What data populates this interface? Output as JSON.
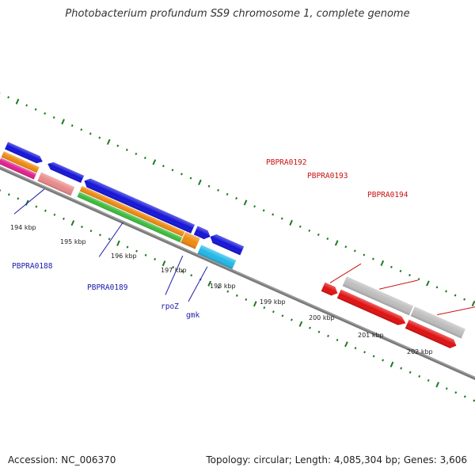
{
  "title": "Photobacterium profundum SS9 chromosome 1, complete genome",
  "footer": {
    "accession": "Accession: NC_006370",
    "summary": "Topology: circular; Length: 4,085,304 bp; Genes: 3,606"
  },
  "scale_labels": [
    "194 kbp",
    "195 kbp",
    "196 kbp",
    "197 kbp",
    "198 kbp",
    "199 kbp",
    "200 kbp",
    "201 kbp",
    "202 kbp"
  ],
  "gene_labels": {
    "PBPRA0188": "PBPRA0188",
    "PBPRA0189": "PBPRA0189",
    "rpoZ": "rpoZ",
    "gmk": "gmk",
    "PBPRA0192": "PBPRA0192",
    "PBPRA0193": "PBPRA0193",
    "PBPRA0194": "PBPRA0194"
  },
  "colors": {
    "backbone": "#7a7a7a",
    "ticks": "#1f7a1f",
    "label_blue": "#1a1aaa",
    "label_red": "#cc1111",
    "blue": "#1414d8",
    "red": "#e01010",
    "grey": "#bdbdbd",
    "orange": "#ef8a10",
    "green": "#3cbc3c",
    "cyan": "#22b8e8",
    "pink": "#e88a8a",
    "magenta": "#e0208c",
    "teal": "#2ee89a"
  }
}
